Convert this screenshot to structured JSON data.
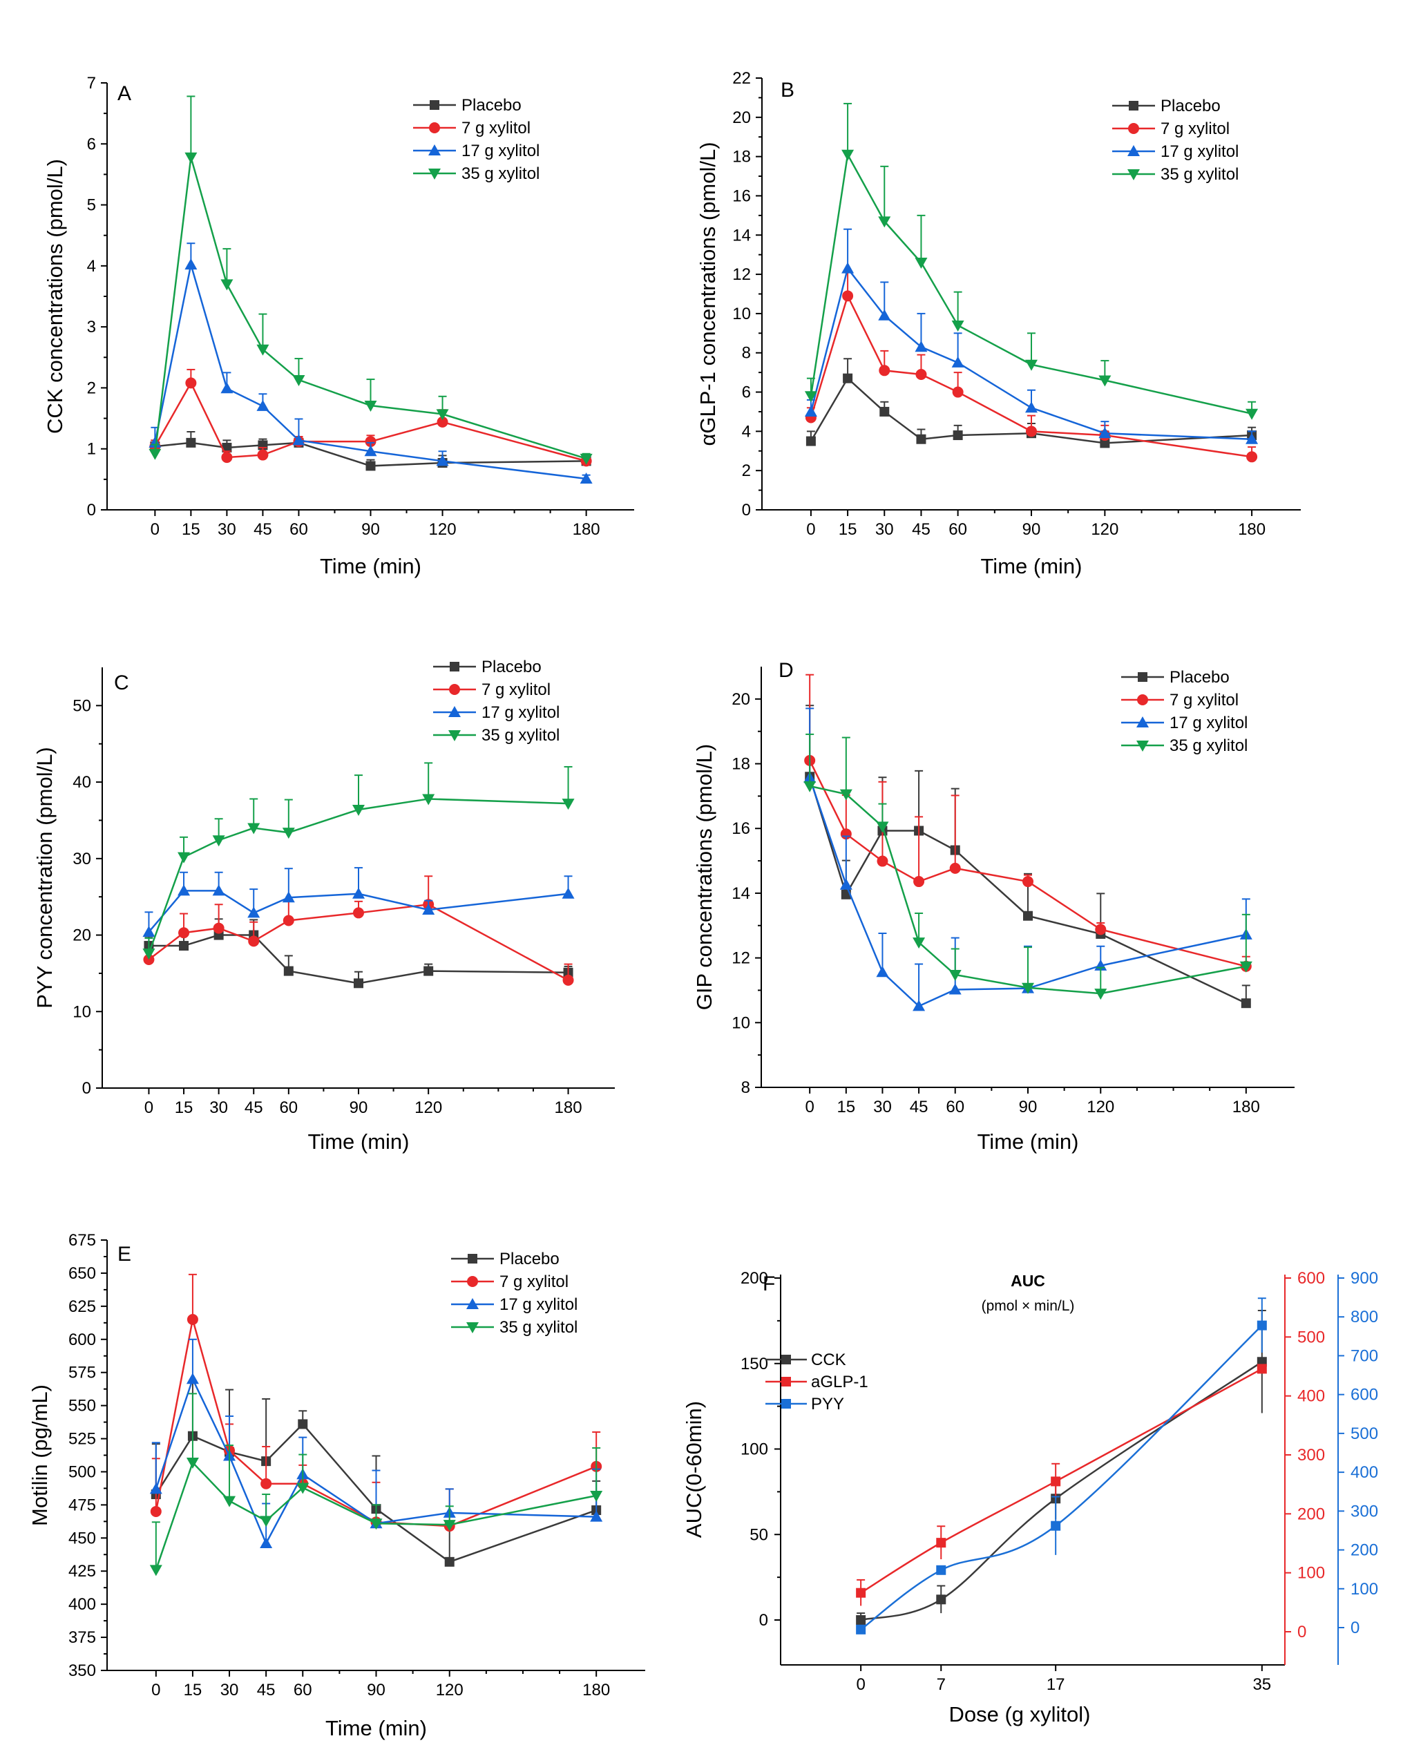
{
  "colors": {
    "black": "#3a3a3a",
    "red": "#e8282a",
    "blue": "#1565d8",
    "green": "#14a04a",
    "blue2": "#1a6fd6"
  },
  "chart_data": [
    {
      "panel": "A",
      "type": "line",
      "xlabel": "Time (min)",
      "ylabel": "CCK concentrations (pmol/L)",
      "x": [
        0,
        15,
        30,
        45,
        60,
        90,
        120,
        180
      ],
      "xticks": [
        0,
        15,
        30,
        45,
        60,
        90,
        120,
        180
      ],
      "xlim": [
        -20,
        200
      ],
      "ylim": [
        0,
        7
      ],
      "yticks": [
        0,
        1,
        2,
        3,
        4,
        5,
        6,
        7
      ],
      "series": [
        {
          "name": "Placebo",
          "color": "black",
          "marker": "square",
          "values": [
            1.04,
            1.1,
            1.02,
            1.06,
            1.1,
            0.72,
            0.77,
            0.8
          ],
          "err": [
            0.1,
            0.18,
            0.12,
            0.1,
            0.1,
            0.1,
            0.12,
            0.08
          ]
        },
        {
          "name": "7 g xylitol",
          "color": "red",
          "marker": "circle",
          "values": [
            1.04,
            2.08,
            0.86,
            0.9,
            1.12,
            1.12,
            1.44,
            0.8
          ],
          "err": [
            0.1,
            0.22,
            0.1,
            0.12,
            0.08,
            0.1,
            0.2,
            0.08
          ]
        },
        {
          "name": "17 g xylitol",
          "color": "blue",
          "marker": "tri-up",
          "values": [
            1.1,
            4.02,
            1.99,
            1.7,
            1.14,
            0.96,
            0.8,
            0.51
          ],
          "err": [
            0.25,
            0.35,
            0.26,
            0.2,
            0.35,
            0.14,
            0.16,
            0.06
          ]
        },
        {
          "name": "35 g xylitol",
          "color": "green",
          "marker": "tri-down",
          "values": [
            0.92,
            5.78,
            3.7,
            2.63,
            2.13,
            1.71,
            1.57,
            0.84
          ],
          "err": [
            0.15,
            1.0,
            0.58,
            0.58,
            0.35,
            0.43,
            0.29,
            0.08
          ]
        }
      ]
    },
    {
      "panel": "B",
      "type": "line",
      "xlabel": "Time (min)",
      "ylabel": "αGLP-1 concentrations (pmol/L)",
      "x": [
        0,
        15,
        30,
        45,
        60,
        90,
        120,
        180
      ],
      "xticks": [
        0,
        15,
        30,
        45,
        60,
        90,
        120,
        180
      ],
      "xlim": [
        -20,
        200
      ],
      "ylim": [
        0,
        22
      ],
      "yticks": [
        0,
        2,
        4,
        6,
        8,
        10,
        12,
        14,
        16,
        18,
        20,
        22
      ],
      "series": [
        {
          "name": "Placebo",
          "color": "black",
          "marker": "square",
          "values": [
            3.5,
            6.7,
            5.0,
            3.6,
            3.8,
            3.9,
            3.4,
            3.8
          ],
          "err": [
            0.5,
            1.0,
            0.5,
            0.5,
            0.5,
            0.5,
            0.6,
            0.4
          ]
        },
        {
          "name": "7 g xylitol",
          "color": "red",
          "marker": "circle",
          "values": [
            4.7,
            10.9,
            7.1,
            6.9,
            6.0,
            4.0,
            3.8,
            2.7
          ],
          "err": [
            0.5,
            1.2,
            1.0,
            1.0,
            1.0,
            0.8,
            0.5,
            0.5
          ]
        },
        {
          "name": "17 g xylitol",
          "color": "blue",
          "marker": "tri-up",
          "values": [
            5.0,
            12.3,
            9.9,
            8.3,
            7.5,
            5.2,
            3.9,
            3.6
          ],
          "err": [
            0.6,
            2.0,
            1.7,
            1.7,
            1.5,
            0.9,
            0.6,
            0.4
          ]
        },
        {
          "name": "35 g xylitol",
          "color": "green",
          "marker": "tri-down",
          "values": [
            5.8,
            18.1,
            14.7,
            12.6,
            9.4,
            7.4,
            6.6,
            4.9
          ],
          "err": [
            0.9,
            2.6,
            2.8,
            2.4,
            1.7,
            1.6,
            1.0,
            0.6
          ]
        }
      ]
    },
    {
      "panel": "C",
      "type": "line",
      "xlabel": "Time (min)",
      "ylabel": "PYY concentration (pmol/L)",
      "x": [
        0,
        15,
        30,
        45,
        60,
        90,
        120,
        180
      ],
      "xticks": [
        0,
        15,
        30,
        45,
        60,
        90,
        120,
        180
      ],
      "xlim": [
        -20,
        200
      ],
      "ylim": [
        0,
        55
      ],
      "yticks": [
        0,
        10,
        20,
        30,
        40,
        50
      ],
      "series": [
        {
          "name": "Placebo",
          "color": "black",
          "marker": "square",
          "values": [
            18.6,
            18.6,
            20.0,
            20.0,
            15.3,
            13.7,
            15.3,
            15.1
          ],
          "err": [
            1.2,
            1.8,
            2.1,
            2.0,
            2.0,
            1.5,
            0.9,
            0.8
          ]
        },
        {
          "name": "7 g xylitol",
          "color": "red",
          "marker": "circle",
          "values": [
            16.8,
            20.3,
            20.9,
            19.2,
            21.9,
            22.9,
            24.0,
            14.1
          ],
          "err": [
            1.2,
            2.5,
            3.1,
            2.5,
            2.5,
            1.5,
            3.7,
            2.1
          ]
        },
        {
          "name": "17 g xylitol",
          "color": "blue",
          "marker": "tri-up",
          "values": [
            20.4,
            25.8,
            25.8,
            22.9,
            24.9,
            25.4,
            23.3,
            25.4
          ],
          "err": [
            2.6,
            2.4,
            2.4,
            3.1,
            3.8,
            3.4,
            1.2,
            2.3
          ]
        },
        {
          "name": "35 g xylitol",
          "color": "green",
          "marker": "tri-down",
          "values": [
            17.6,
            30.2,
            32.4,
            34.0,
            33.4,
            36.4,
            37.8,
            37.2
          ],
          "err": [
            2.0,
            2.6,
            2.8,
            3.8,
            4.3,
            4.5,
            4.7,
            4.8
          ]
        }
      ]
    },
    {
      "panel": "D",
      "type": "line",
      "xlabel": "Time (min)",
      "ylabel": "GIP concentrations (pmol/L)",
      "x": [
        0,
        15,
        30,
        45,
        60,
        90,
        120,
        180
      ],
      "xticks": [
        0,
        15,
        30,
        45,
        60,
        90,
        120,
        180
      ],
      "xlim": [
        -20,
        200
      ],
      "ylim": [
        8,
        21
      ],
      "yticks": [
        8,
        10,
        12,
        14,
        16,
        18,
        20
      ],
      "series": [
        {
          "name": "Placebo",
          "color": "black",
          "marker": "square",
          "values": [
            17.6,
            13.96,
            15.93,
            15.93,
            15.33,
            13.3,
            12.74,
            10.6
          ],
          "err": [
            2.2,
            1.05,
            1.65,
            1.85,
            1.9,
            1.3,
            1.25,
            0.55
          ]
        },
        {
          "name": "7 g xylitol",
          "color": "red",
          "marker": "circle",
          "values": [
            18.1,
            15.83,
            14.99,
            14.36,
            14.77,
            14.36,
            12.88,
            11.74
          ],
          "err": [
            2.65,
            1.2,
            2.45,
            2.0,
            2.25,
            0.2,
            0.2,
            0.3
          ]
        },
        {
          "name": "17 g xylitol",
          "color": "blue",
          "marker": "tri-up",
          "values": [
            17.56,
            14.26,
            11.56,
            10.51,
            11.02,
            11.06,
            11.76,
            12.72
          ],
          "err": [
            2.15,
            1.5,
            1.2,
            1.3,
            1.6,
            1.3,
            0.6,
            1.1
          ]
        },
        {
          "name": "35 g xylitol",
          "color": "green",
          "marker": "tri-down",
          "values": [
            17.31,
            17.06,
            16.06,
            12.48,
            11.48,
            11.08,
            10.9,
            11.74
          ],
          "err": [
            1.6,
            1.75,
            0.7,
            0.9,
            0.8,
            1.25,
            0.8,
            1.6
          ]
        }
      ]
    },
    {
      "panel": "E",
      "type": "line",
      "xlabel": "Time (min)",
      "ylabel": "Motilin (pg/mL)",
      "x": [
        0,
        15,
        30,
        45,
        60,
        90,
        120,
        180
      ],
      "xticks": [
        0,
        15,
        30,
        45,
        60,
        90,
        120,
        180
      ],
      "xlim": [
        -20,
        200
      ],
      "ylim": [
        350,
        675
      ],
      "yticks": [
        350,
        375,
        400,
        425,
        450,
        475,
        500,
        525,
        550,
        575,
        600,
        625,
        650,
        675
      ],
      "series": [
        {
          "name": "Placebo",
          "color": "black",
          "marker": "square",
          "values": [
            483,
            527,
            515,
            508,
            536,
            472,
            432,
            471
          ],
          "err": [
            38,
            40,
            47,
            47,
            10,
            40,
            28,
            22
          ]
        },
        {
          "name": "7 g xylitol",
          "color": "red",
          "marker": "circle",
          "values": [
            470,
            615,
            516,
            491,
            491,
            462,
            459,
            504
          ],
          "err": [
            40,
            34,
            20,
            28,
            14,
            30,
            28,
            26
          ]
        },
        {
          "name": "17 g xylitol",
          "color": "blue",
          "marker": "tri-up",
          "values": [
            487,
            570,
            512,
            446,
            498,
            461,
            469,
            466
          ],
          "err": [
            35,
            30,
            30,
            30,
            28,
            40,
            18,
            36
          ]
        },
        {
          "name": "35 g xylitol",
          "color": "green",
          "marker": "tri-down",
          "values": [
            426,
            507,
            478,
            463,
            488,
            461,
            460,
            482
          ],
          "err": [
            36,
            52,
            42,
            20,
            25,
            14,
            14,
            36
          ]
        }
      ]
    },
    {
      "panel": "F",
      "type": "line",
      "title": "AUC",
      "subtitle": "(pmol × min/L)",
      "xlabel": "Dose (g xylitol)",
      "ylabel": "AUC(0-60min)",
      "x": [
        0,
        7,
        17,
        35
      ],
      "xticks": [
        0,
        7,
        17,
        35
      ],
      "xlim": [
        -7,
        37
      ],
      "ylim_left": [
        -25,
        200
      ],
      "yticks_left": [
        0,
        50,
        100,
        150,
        200
      ],
      "ylim_red": [
        -60,
        600
      ],
      "yticks_red": [
        0,
        100,
        200,
        300,
        400,
        500,
        600
      ],
      "ylim_blue": [
        -100,
        900
      ],
      "yticks_blue": [
        0,
        100,
        200,
        300,
        400,
        500,
        600,
        700,
        800,
        900
      ],
      "series": [
        {
          "name": "CCK",
          "color": "black",
          "marker": "square",
          "axis": "left",
          "values": [
            0,
            12,
            71,
            151
          ],
          "err": [
            4,
            8,
            12,
            30
          ]
        },
        {
          "name": "aGLP-1",
          "color": "red",
          "marker": "square",
          "axis": "red",
          "values": [
            66,
            151,
            255,
            446
          ],
          "err": [
            22,
            28,
            30,
            0
          ]
        },
        {
          "name": "PYY",
          "color": "blue2",
          "marker": "square",
          "axis": "blue",
          "values": [
            -5,
            148,
            262,
            778
          ],
          "err": [
            0,
            0,
            75,
            70
          ]
        }
      ]
    }
  ]
}
